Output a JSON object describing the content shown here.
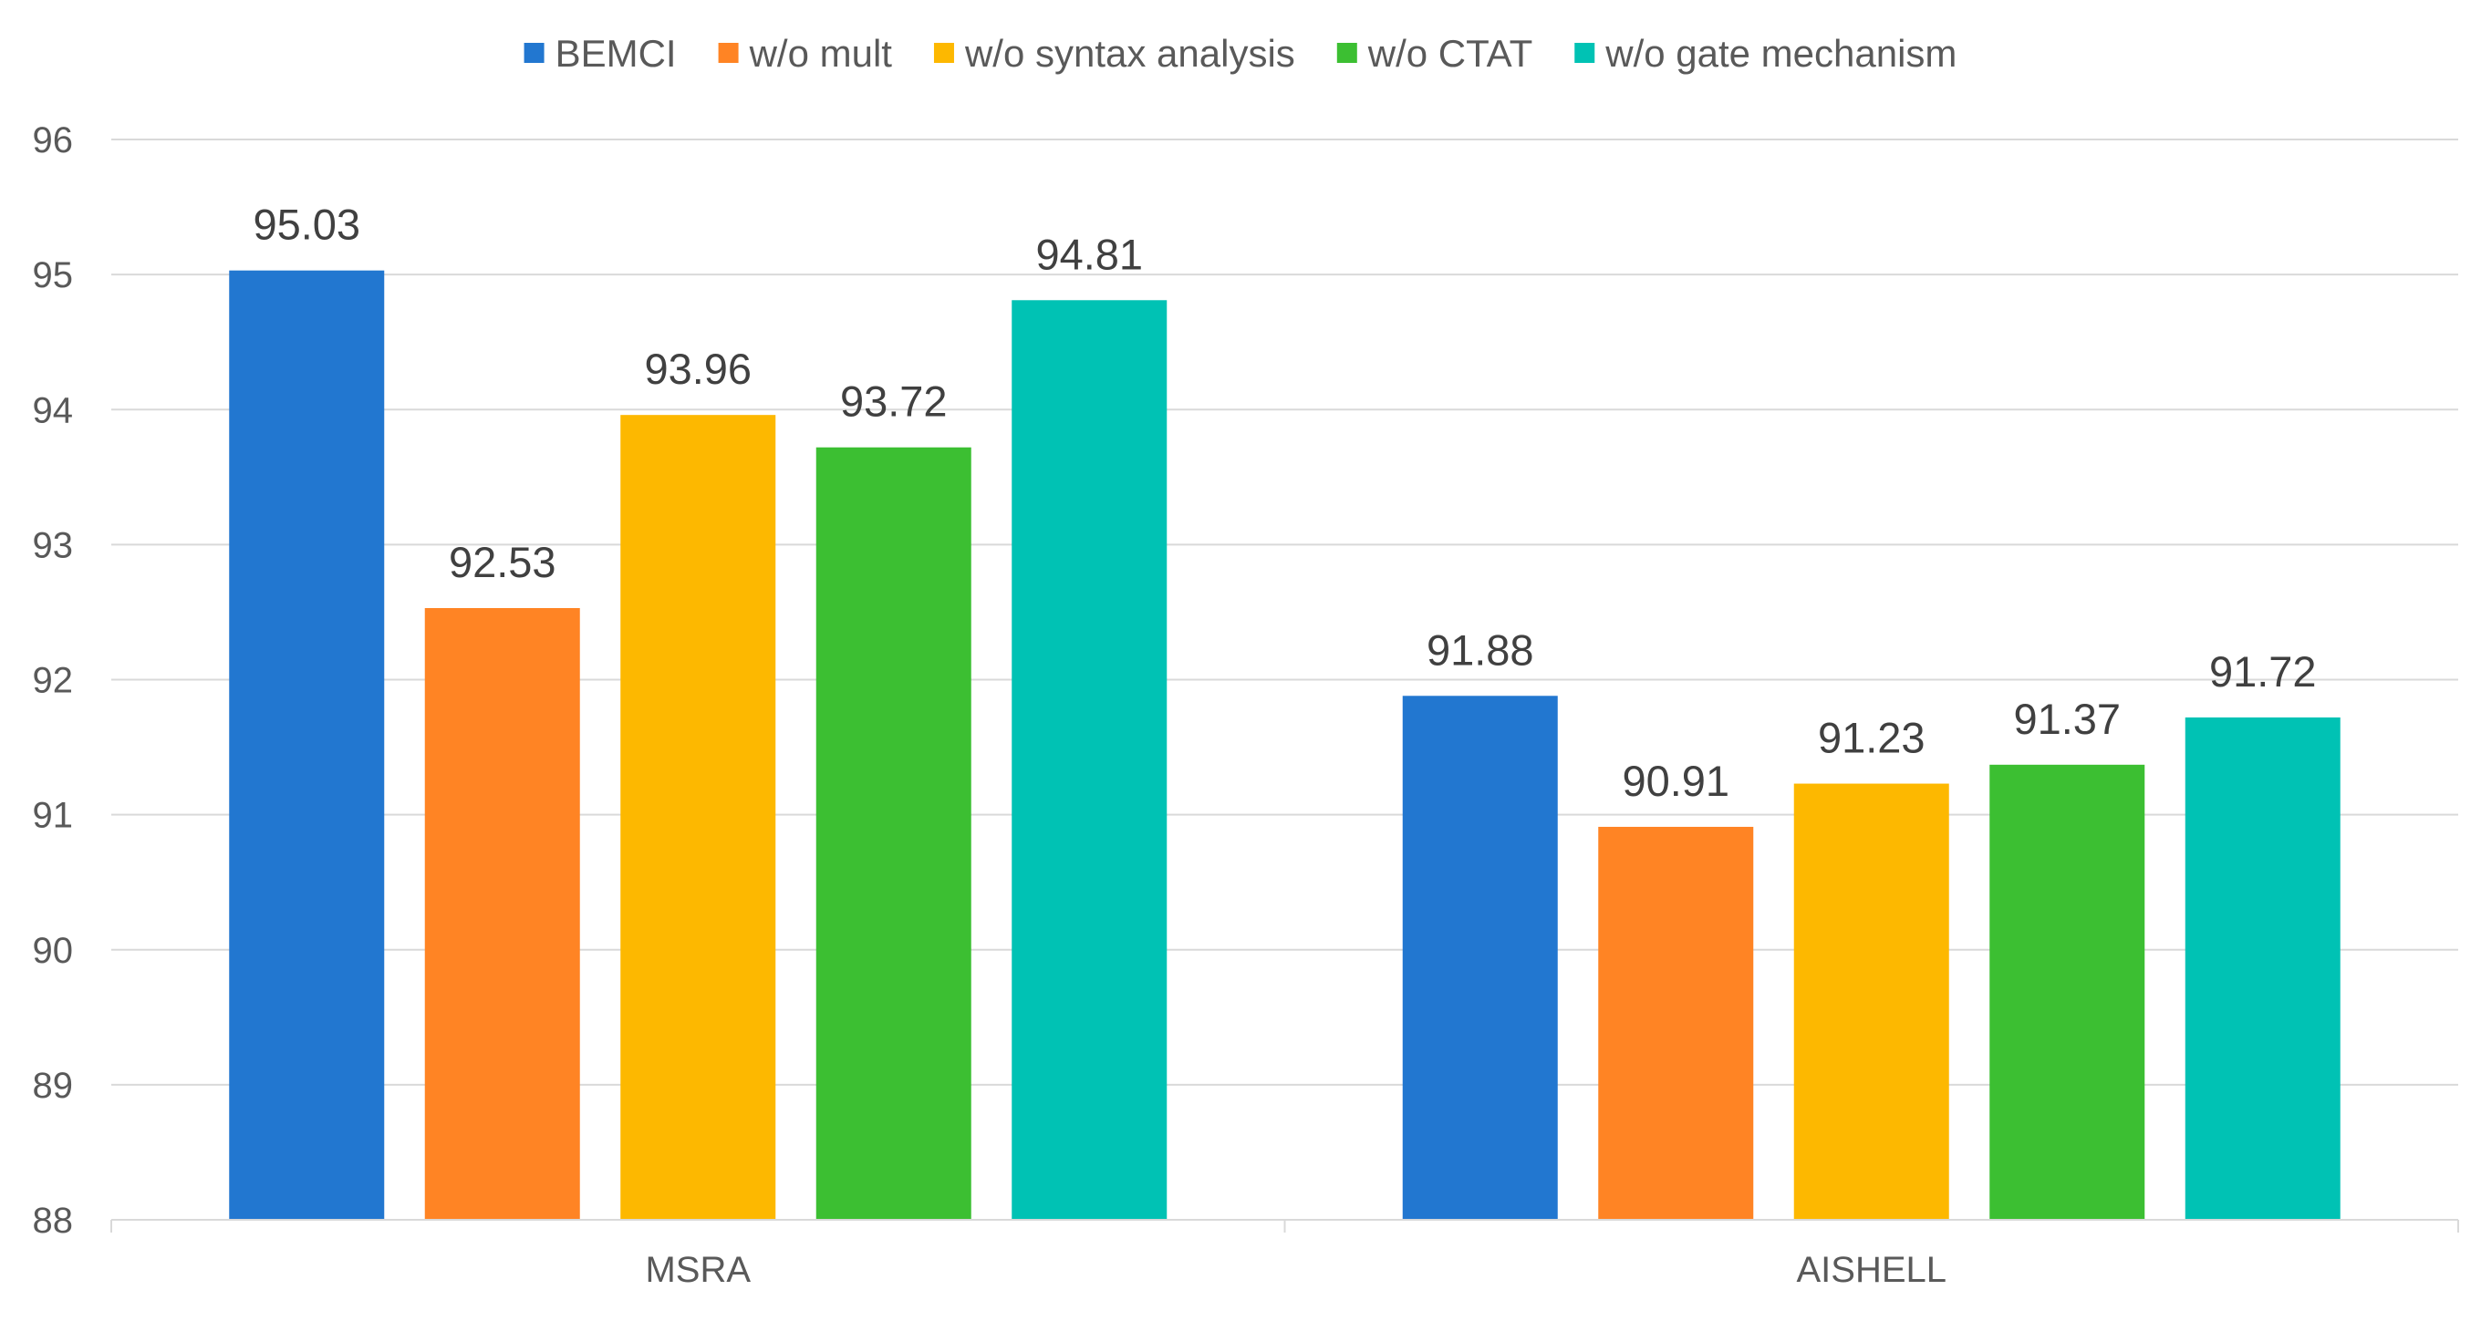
{
  "chart_data": {
    "type": "bar",
    "title": "",
    "xlabel": "",
    "ylabel": "",
    "categories": [
      "MSRA",
      "AISHELL"
    ],
    "series": [
      {
        "name": "BEMCI",
        "values": [
          95.03,
          91.88
        ],
        "color": "#2277D0"
      },
      {
        "name": "w/o mult",
        "values": [
          92.53,
          90.91
        ],
        "color": "#FF8424"
      },
      {
        "name": "w/o syntax analysis",
        "values": [
          93.96,
          91.23
        ],
        "color": "#FDB800"
      },
      {
        "name": "w/o CTAT",
        "values": [
          93.72,
          91.37
        ],
        "color": "#3CBF32"
      },
      {
        "name": "w/o gate mechanism",
        "values": [
          94.81,
          91.72
        ],
        "color": "#00C2B4"
      }
    ],
    "value_labels": [
      [
        "95.03",
        "91.88"
      ],
      [
        "92.53",
        "90.91"
      ],
      [
        "93.96",
        "91.23"
      ],
      [
        "93.72",
        "91.37"
      ],
      [
        "94.81",
        "91.72"
      ]
    ],
    "ylim": [
      88,
      96
    ],
    "yticks": [
      88,
      89,
      90,
      91,
      92,
      93,
      94,
      95,
      96
    ],
    "grid": true,
    "legend_position": "top"
  }
}
